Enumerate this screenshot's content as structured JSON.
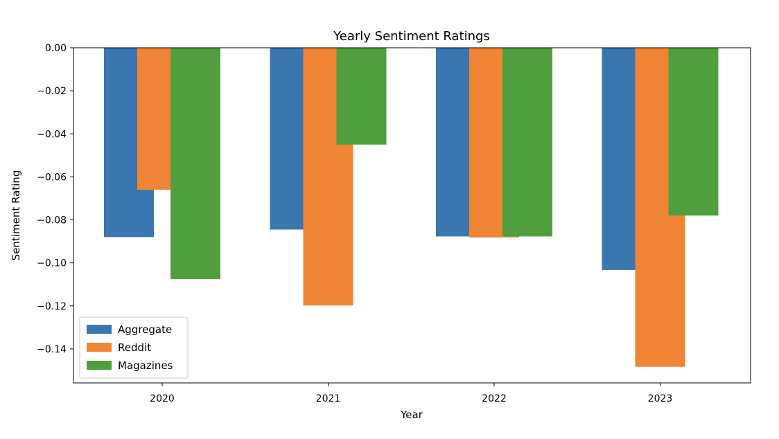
{
  "chart_data": {
    "type": "bar",
    "title": "Yearly Sentiment Ratings",
    "xlabel": "Year",
    "ylabel": "Sentiment Rating",
    "categories": [
      "2020",
      "2021",
      "2022",
      "2023"
    ],
    "series": [
      {
        "name": "Aggregate",
        "color": "#3a76b0",
        "values": [
          -0.088,
          -0.0845,
          -0.0877,
          -0.1033
        ]
      },
      {
        "name": "Reddit",
        "color": "#f08535",
        "values": [
          -0.066,
          -0.1198,
          -0.0882,
          -0.1483
        ]
      },
      {
        "name": "Magazines",
        "color": "#519e3e",
        "values": [
          -0.1075,
          -0.045,
          -0.0877,
          -0.078
        ]
      }
    ],
    "ylim": [
      -0.1558,
      0.0
    ],
    "yticks": [
      0.0,
      -0.02,
      -0.04,
      -0.06,
      -0.08,
      -0.1,
      -0.12,
      -0.14
    ],
    "ytick_labels": [
      "0.00",
      "−0.02",
      "−0.04",
      "−0.06",
      "−0.08",
      "−0.10",
      "−0.12",
      "−0.14"
    ],
    "legend_position": "lower-left",
    "grid": false
  }
}
